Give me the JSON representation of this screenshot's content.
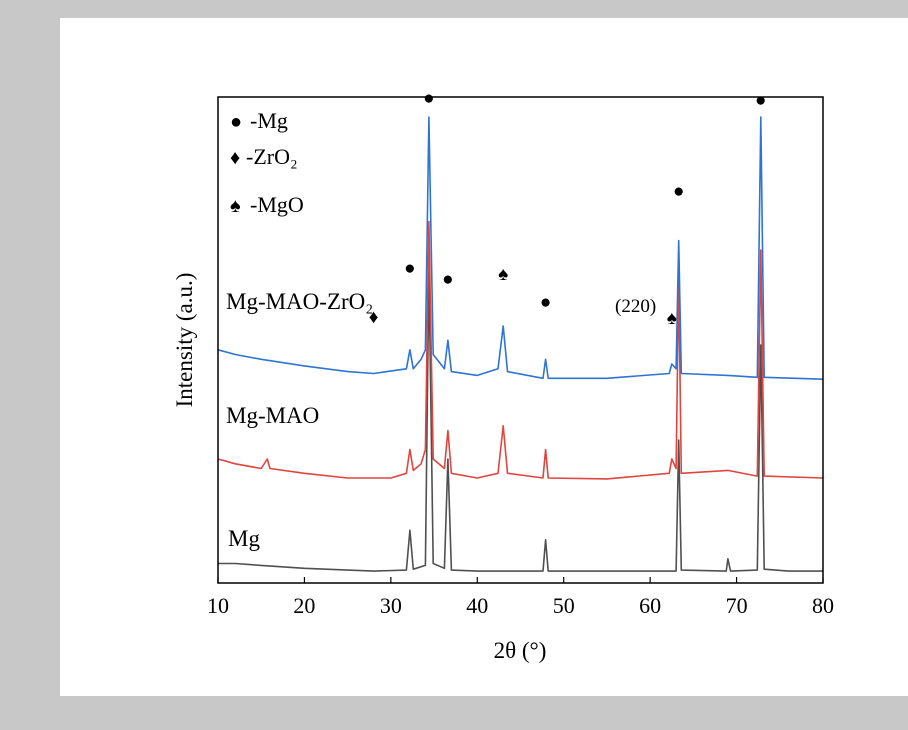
{
  "chart_data": {
    "type": "line",
    "xlabel": "2θ (°)",
    "ylabel": "Intensity (a.u.)",
    "xlim": [
      10,
      80
    ],
    "x_ticks": [
      10,
      20,
      30,
      40,
      50,
      60,
      70,
      80
    ],
    "series": [
      {
        "name": "Mg",
        "color": "#505050",
        "points": [
          [
            10,
            0.1
          ],
          [
            12,
            0.1
          ],
          [
            15,
            0.08
          ],
          [
            20,
            0.05
          ],
          [
            25,
            0.03
          ],
          [
            28,
            0.02
          ],
          [
            31.8,
            0.03
          ],
          [
            32.2,
            0.45
          ],
          [
            32.6,
            0.04
          ],
          [
            34.0,
            0.08
          ],
          [
            34.4,
            3.2
          ],
          [
            34.9,
            0.1
          ],
          [
            36.2,
            0.05
          ],
          [
            36.6,
            1.2
          ],
          [
            37.0,
            0.03
          ],
          [
            40,
            0.02
          ],
          [
            47.6,
            0.02
          ],
          [
            47.9,
            0.35
          ],
          [
            48.2,
            0.02
          ],
          [
            57,
            0.02
          ],
          [
            63.0,
            0.02
          ],
          [
            63.3,
            1.4
          ],
          [
            63.6,
            0.03
          ],
          [
            68.8,
            0.02
          ],
          [
            69.0,
            0.15
          ],
          [
            69.3,
            0.02
          ],
          [
            72.4,
            0.03
          ],
          [
            72.8,
            2.4
          ],
          [
            73.2,
            0.04
          ],
          [
            76,
            0.02
          ],
          [
            80,
            0.02
          ]
        ]
      },
      {
        "name": "Mg-MAO",
        "color": "#e0453f",
        "points": [
          [
            10,
            1.2
          ],
          [
            12,
            1.15
          ],
          [
            15,
            1.1
          ],
          [
            15.7,
            1.2
          ],
          [
            16,
            1.1
          ],
          [
            20,
            1.05
          ],
          [
            25,
            1.0
          ],
          [
            30,
            1.0
          ],
          [
            31.8,
            1.05
          ],
          [
            32.2,
            1.3
          ],
          [
            32.6,
            1.08
          ],
          [
            33.5,
            1.15
          ],
          [
            34.0,
            1.3
          ],
          [
            34.4,
            3.7
          ],
          [
            34.9,
            1.2
          ],
          [
            36.2,
            1.1
          ],
          [
            36.6,
            1.5
          ],
          [
            37.0,
            1.05
          ],
          [
            40,
            1.0
          ],
          [
            42.4,
            1.05
          ],
          [
            43.0,
            1.55
          ],
          [
            43.5,
            1.05
          ],
          [
            47.6,
            1.0
          ],
          [
            47.9,
            1.3
          ],
          [
            48.2,
            1.0
          ],
          [
            55,
            0.99
          ],
          [
            62.2,
            1.05
          ],
          [
            62.5,
            1.2
          ],
          [
            63.0,
            1.1
          ],
          [
            63.3,
            3.1
          ],
          [
            63.6,
            1.05
          ],
          [
            69.0,
            1.08
          ],
          [
            72.4,
            1.02
          ],
          [
            72.8,
            3.4
          ],
          [
            73.2,
            1.02
          ],
          [
            80,
            1.0
          ]
        ]
      },
      {
        "name": "Mg-MAO-ZrO₂",
        "color": "#2e74d2",
        "points": [
          [
            10,
            2.35
          ],
          [
            12,
            2.3
          ],
          [
            15,
            2.25
          ],
          [
            20,
            2.18
          ],
          [
            25,
            2.12
          ],
          [
            28,
            2.1
          ],
          [
            31.8,
            2.15
          ],
          [
            32.2,
            2.35
          ],
          [
            32.6,
            2.15
          ],
          [
            33.5,
            2.25
          ],
          [
            34.0,
            2.35
          ],
          [
            34.4,
            4.8
          ],
          [
            34.9,
            2.3
          ],
          [
            36.2,
            2.15
          ],
          [
            36.6,
            2.45
          ],
          [
            37.0,
            2.12
          ],
          [
            40,
            2.08
          ],
          [
            42.4,
            2.15
          ],
          [
            43.0,
            2.6
          ],
          [
            43.5,
            2.12
          ],
          [
            47.6,
            2.05
          ],
          [
            47.9,
            2.25
          ],
          [
            48.2,
            2.05
          ],
          [
            55,
            2.05
          ],
          [
            62.2,
            2.1
          ],
          [
            62.5,
            2.2
          ],
          [
            63.0,
            2.15
          ],
          [
            63.3,
            3.5
          ],
          [
            63.6,
            2.1
          ],
          [
            69.0,
            2.08
          ],
          [
            72.4,
            2.06
          ],
          [
            72.8,
            4.8
          ],
          [
            73.2,
            2.06
          ],
          [
            80,
            2.04
          ]
        ]
      }
    ],
    "series_labels": [
      "Mg",
      "Mg-MAO",
      "Mg-MAO-ZrO₂"
    ],
    "legend": {
      "placement": "top-left",
      "items": [
        {
          "symbol": "●",
          "text": "-Mg"
        },
        {
          "symbol": "♦",
          "text": "-ZrO₂"
        },
        {
          "symbol": "♠",
          "text": "-MgO"
        }
      ]
    },
    "peak_markers": [
      {
        "symbol": "●",
        "x": 34.4
      },
      {
        "symbol": "●",
        "x": 32.2
      },
      {
        "symbol": "♦",
        "x": 28.0
      },
      {
        "symbol": "●",
        "x": 36.6
      },
      {
        "symbol": "♠",
        "x": 43.0
      },
      {
        "symbol": "●",
        "x": 47.9
      },
      {
        "symbol": "●",
        "x": 63.3
      },
      {
        "symbol": "♠",
        "x": 62.5
      },
      {
        "symbol": "●",
        "x": 72.8
      }
    ],
    "annotations": [
      {
        "text": "(220)",
        "x": 60.0
      }
    ],
    "grid": false
  }
}
